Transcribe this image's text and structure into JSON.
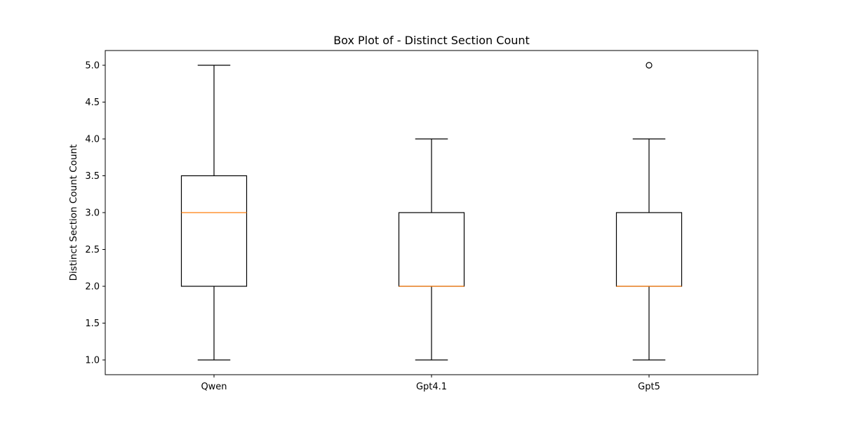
{
  "chart_data": {
    "type": "box",
    "title": "Box Plot of - Distinct Section Count",
    "xlabel": "",
    "ylabel": "Distinct Section Count Count",
    "categories": [
      "Qwen",
      "Gpt4.1",
      "Gpt5"
    ],
    "boxes": [
      {
        "whisker_low": 1.0,
        "q1": 2.0,
        "median": 3.0,
        "q3": 3.5,
        "whisker_high": 5.0,
        "outliers": []
      },
      {
        "whisker_low": 1.0,
        "q1": 2.0,
        "median": 2.0,
        "q3": 3.0,
        "whisker_high": 4.0,
        "outliers": []
      },
      {
        "whisker_low": 1.0,
        "q1": 2.0,
        "median": 2.0,
        "q3": 3.0,
        "whisker_high": 4.0,
        "outliers": [
          5.0
        ]
      }
    ],
    "ylim": [
      0.8,
      5.2
    ],
    "yticks": [
      1.0,
      1.5,
      2.0,
      2.5,
      3.0,
      3.5,
      4.0,
      4.5,
      5.0
    ],
    "ytick_labels": [
      "1.0",
      "1.5",
      "2.0",
      "2.5",
      "3.0",
      "3.5",
      "4.0",
      "4.5",
      "5.0"
    ],
    "grid": false,
    "colors": {
      "box": "#000000",
      "median": "#ff7f0e",
      "axes": "#000000"
    }
  }
}
